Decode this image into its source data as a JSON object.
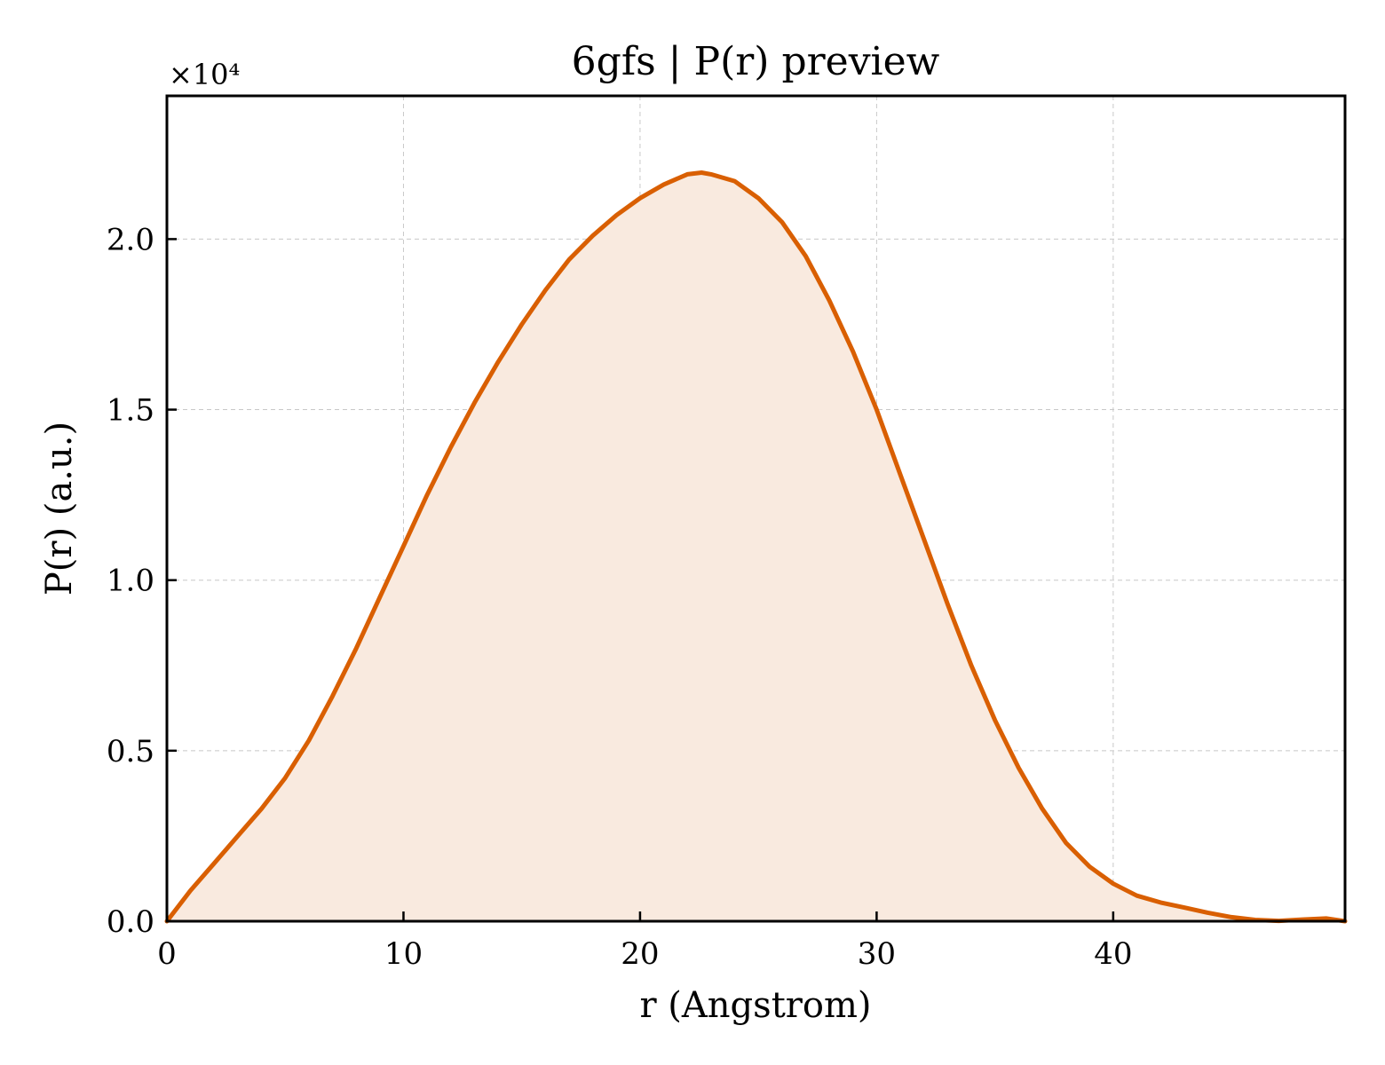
{
  "chart_data": {
    "type": "area",
    "title": "6gfs | P(r) preview",
    "xlabel": "r (Angstrom)",
    "ylabel": "P(r) (a.u.)",
    "y_offset_label": "×10⁴",
    "y_scale_factor": 10000,
    "xlim": [
      0,
      49.8
    ],
    "ylim": [
      0,
      24200
    ],
    "xticks": [
      0,
      10,
      20,
      30,
      40
    ],
    "xtick_labels": [
      "0",
      "10",
      "20",
      "30",
      "40"
    ],
    "yticks": [
      0,
      5000,
      10000,
      15000,
      20000
    ],
    "ytick_labels": [
      "0.0",
      "0.5",
      "1.0",
      "1.5",
      "2.0"
    ],
    "grid": true,
    "colors": {
      "line": "#d95f02",
      "fill": "#f9eadf"
    },
    "series": [
      {
        "x": [
          0,
          1,
          2,
          3,
          4,
          5,
          6,
          7,
          8,
          9,
          10,
          11,
          12,
          13,
          14,
          15,
          16,
          17,
          18,
          19,
          20,
          21,
          22,
          22.6,
          23,
          24,
          25,
          26,
          27,
          28,
          29,
          30,
          31,
          32,
          33,
          34,
          35,
          36,
          37,
          38,
          39,
          40,
          41,
          42,
          43,
          44,
          45,
          46,
          47,
          48,
          49,
          49.8
        ],
        "y": [
          0,
          900,
          1700,
          2500,
          3300,
          4200,
          5300,
          6600,
          8000,
          9500,
          11000,
          12500,
          13900,
          15200,
          16400,
          17500,
          18500,
          19400,
          20100,
          20700,
          21200,
          21600,
          21900,
          21950,
          21900,
          21700,
          21200,
          20500,
          19500,
          18200,
          16700,
          15000,
          13100,
          11200,
          9300,
          7500,
          5900,
          4500,
          3300,
          2300,
          1600,
          1100,
          750,
          550,
          400,
          250,
          120,
          40,
          10,
          50,
          80,
          0
        ]
      }
    ]
  }
}
